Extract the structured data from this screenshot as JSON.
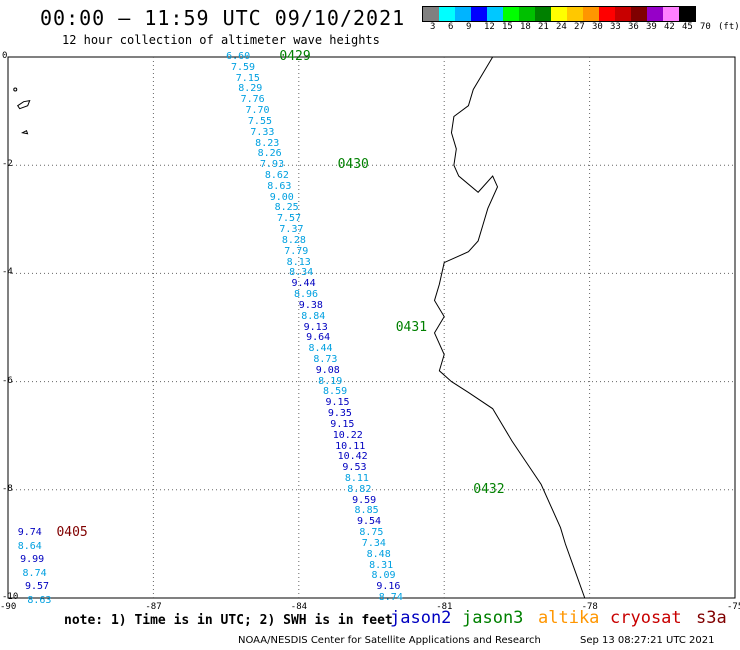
{
  "header": {
    "title": "00:00 – 11:59 UTC 09/10/2021",
    "subtitle": "12 hour collection of altimeter wave heights"
  },
  "colorbar": {
    "colors": [
      "#808080",
      "#00ffff",
      "#00b4ff",
      "#0000ff",
      "#00c8ff",
      "#00ff00",
      "#00c000",
      "#008000",
      "#ffff00",
      "#ffc800",
      "#ff9600",
      "#ff0000",
      "#c80000",
      "#800000",
      "#9600c8",
      "#ff80ff",
      "#000000"
    ],
    "ticks": [
      "3",
      "6",
      "9",
      "12",
      "15",
      "18",
      "21",
      "24",
      "27",
      "30",
      "33",
      "36",
      "39",
      "42",
      "45",
      "70",
      "(ft)"
    ]
  },
  "axes": {
    "lon_ticks": [
      "-90",
      "-87",
      "-84",
      "-81",
      "-78",
      "-75"
    ],
    "lat_ticks": [
      "0",
      "-2",
      "-4",
      "-6",
      "-8",
      "-10"
    ]
  },
  "passes": [
    {
      "label": "0429",
      "color": "#008000",
      "lat": 0.0,
      "lon": -84.4
    },
    {
      "label": "0430",
      "color": "#008000",
      "lat": -2.0,
      "lon": -83.2
    },
    {
      "label": "0431",
      "color": "#008000",
      "lat": -5.0,
      "lon": -82.0
    },
    {
      "label": "0432",
      "color": "#008000",
      "lat": -8.0,
      "lon": -80.4
    },
    {
      "label": "0405",
      "color": "#800000",
      "lat": -8.8,
      "lon": -89.0
    }
  ],
  "samples": [
    {
      "v": "6.60",
      "c": "#00a0e0",
      "lat": 0.0,
      "lon": -85.5
    },
    {
      "v": "7.59",
      "c": "#00a0e0",
      "lat": -0.2,
      "lon": -85.4
    },
    {
      "v": "7.15",
      "c": "#00a0e0",
      "lat": -0.4,
      "lon": -85.3
    },
    {
      "v": "8.29",
      "c": "#00a0e0",
      "lat": -0.6,
      "lon": -85.25
    },
    {
      "v": "7.76",
      "c": "#00a0e0",
      "lat": -0.8,
      "lon": -85.2
    },
    {
      "v": "7.70",
      "c": "#00a0e0",
      "lat": -1.0,
      "lon": -85.1
    },
    {
      "v": "7.55",
      "c": "#00a0e0",
      "lat": -1.2,
      "lon": -85.05
    },
    {
      "v": "7.33",
      "c": "#00a0e0",
      "lat": -1.4,
      "lon": -85.0
    },
    {
      "v": "8.23",
      "c": "#00a0e0",
      "lat": -1.6,
      "lon": -84.9
    },
    {
      "v": "8.26",
      "c": "#00a0e0",
      "lat": -1.8,
      "lon": -84.85
    },
    {
      "v": "7.93",
      "c": "#00a0e0",
      "lat": -2.0,
      "lon": -84.8
    },
    {
      "v": "8.62",
      "c": "#00a0e0",
      "lat": -2.2,
      "lon": -84.7
    },
    {
      "v": "8.63",
      "c": "#00a0e0",
      "lat": -2.4,
      "lon": -84.65
    },
    {
      "v": "9.00",
      "c": "#00a0e0",
      "lat": -2.6,
      "lon": -84.6
    },
    {
      "v": "8.25",
      "c": "#00a0e0",
      "lat": -2.8,
      "lon": -84.5
    },
    {
      "v": "7.57",
      "c": "#00a0e0",
      "lat": -3.0,
      "lon": -84.45
    },
    {
      "v": "7.37",
      "c": "#00a0e0",
      "lat": -3.2,
      "lon": -84.4
    },
    {
      "v": "8.28",
      "c": "#00a0e0",
      "lat": -3.4,
      "lon": -84.35
    },
    {
      "v": "7.79",
      "c": "#00a0e0",
      "lat": -3.6,
      "lon": -84.3
    },
    {
      "v": "8.13",
      "c": "#00a0e0",
      "lat": -3.8,
      "lon": -84.25
    },
    {
      "v": "8.34",
      "c": "#00a0e0",
      "lat": -4.0,
      "lon": -84.2
    },
    {
      "v": "9.44",
      "c": "#0000c0",
      "lat": -4.2,
      "lon": -84.15
    },
    {
      "v": "8.96",
      "c": "#00a0e0",
      "lat": -4.4,
      "lon": -84.1
    },
    {
      "v": "9.38",
      "c": "#0000c0",
      "lat": -4.6,
      "lon": -84.0
    },
    {
      "v": "8.84",
      "c": "#00a0e0",
      "lat": -4.8,
      "lon": -83.95
    },
    {
      "v": "9.13",
      "c": "#0000c0",
      "lat": -5.0,
      "lon": -83.9
    },
    {
      "v": "9.64",
      "c": "#0000c0",
      "lat": -5.2,
      "lon": -83.85
    },
    {
      "v": "8.44",
      "c": "#00a0e0",
      "lat": -5.4,
      "lon": -83.8
    },
    {
      "v": "8.73",
      "c": "#00a0e0",
      "lat": -5.6,
      "lon": -83.7
    },
    {
      "v": "9.08",
      "c": "#0000c0",
      "lat": -5.8,
      "lon": -83.65
    },
    {
      "v": "8.19",
      "c": "#00a0e0",
      "lat": -6.0,
      "lon": -83.6
    },
    {
      "v": "8.59",
      "c": "#00a0e0",
      "lat": -6.2,
      "lon": -83.5
    },
    {
      "v": "9.15",
      "c": "#0000c0",
      "lat": -6.4,
      "lon": -83.45
    },
    {
      "v": "9.35",
      "c": "#0000c0",
      "lat": -6.6,
      "lon": -83.4
    },
    {
      "v": "9.15",
      "c": "#0000c0",
      "lat": -6.8,
      "lon": -83.35
    },
    {
      "v": "10.22",
      "c": "#0000c0",
      "lat": -7.0,
      "lon": -83.3
    },
    {
      "v": "10.11",
      "c": "#0000c0",
      "lat": -7.2,
      "lon": -83.25
    },
    {
      "v": "10.42",
      "c": "#0000c0",
      "lat": -7.4,
      "lon": -83.2
    },
    {
      "v": "9.53",
      "c": "#0000c0",
      "lat": -7.6,
      "lon": -83.1
    },
    {
      "v": "8.11",
      "c": "#00a0e0",
      "lat": -7.8,
      "lon": -83.05
    },
    {
      "v": "8.82",
      "c": "#00a0e0",
      "lat": -8.0,
      "lon": -83.0
    },
    {
      "v": "9.59",
      "c": "#0000c0",
      "lat": -8.2,
      "lon": -82.9
    },
    {
      "v": "8.85",
      "c": "#00a0e0",
      "lat": -8.4,
      "lon": -82.85
    },
    {
      "v": "9.54",
      "c": "#0000c0",
      "lat": -8.6,
      "lon": -82.8
    },
    {
      "v": "8.75",
      "c": "#00a0e0",
      "lat": -8.8,
      "lon": -82.75
    },
    {
      "v": "7.34",
      "c": "#00a0e0",
      "lat": -9.0,
      "lon": -82.7
    },
    {
      "v": "8.48",
      "c": "#00a0e0",
      "lat": -9.2,
      "lon": -82.6
    },
    {
      "v": "8.31",
      "c": "#00a0e0",
      "lat": -9.4,
      "lon": -82.55
    },
    {
      "v": "8.09",
      "c": "#00a0e0",
      "lat": -9.6,
      "lon": -82.5
    },
    {
      "v": "9.16",
      "c": "#0000c0",
      "lat": -9.8,
      "lon": -82.4
    },
    {
      "v": "8.74",
      "c": "#00a0e0",
      "lat": -10.0,
      "lon": -82.35
    },
    {
      "v": "9.74",
      "c": "#0000c0",
      "lat": -8.8,
      "lon": -89.8
    },
    {
      "v": "8.64",
      "c": "#00a0e0",
      "lat": -9.05,
      "lon": -89.8
    },
    {
      "v": "9.99",
      "c": "#0000c0",
      "lat": -9.3,
      "lon": -89.75
    },
    {
      "v": "8.74",
      "c": "#00a0e0",
      "lat": -9.55,
      "lon": -89.7
    },
    {
      "v": "9.57",
      "c": "#0000c0",
      "lat": -9.8,
      "lon": -89.65
    },
    {
      "v": "8.63",
      "c": "#00a0e0",
      "lat": -10.05,
      "lon": -89.6
    }
  ],
  "footer": {
    "note": "note: 1) Time is in UTC; 2) SWH is in feet",
    "satellites": [
      {
        "name": "jason2",
        "color": "#0000c0"
      },
      {
        "name": "jason3",
        "color": "#008000"
      },
      {
        "name": "altika",
        "color": "#ff9600"
      },
      {
        "name": "cryosat",
        "color": "#c80000"
      },
      {
        "name": "s3a",
        "color": "#800000"
      }
    ],
    "credit": "NOAA/NESDIS Center for Satellite Applications and Research",
    "timestamp": "Sep 13 08:27:21 UTC 2021"
  }
}
